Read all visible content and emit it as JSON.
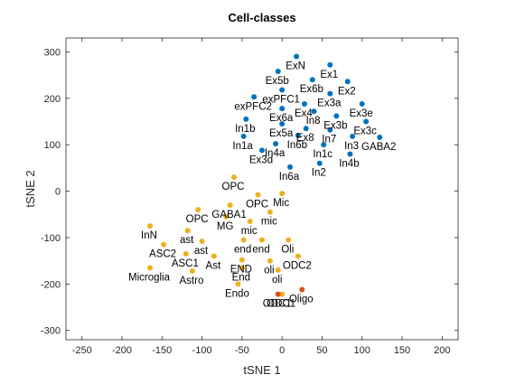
{
  "chart_data": {
    "type": "scatter",
    "title": "Cell-classes",
    "xlabel": "tSNE 1",
    "ylabel": "tSNE 2",
    "xlim": [
      -270,
      220
    ],
    "ylim": [
      -320,
      330
    ],
    "xticks": [
      -250,
      -200,
      -150,
      -100,
      -50,
      0,
      50,
      100,
      150,
      200
    ],
    "yticks": [
      -300,
      -200,
      -100,
      0,
      100,
      200,
      300
    ],
    "grid": false,
    "colors": {
      "blue": "#0072bd",
      "yellow": "#edb120",
      "orange": "#d95319"
    },
    "series": [
      {
        "color": "#0072bd",
        "points": [
          {
            "x": 18,
            "y": 290,
            "label": "ExN"
          },
          {
            "x": 60,
            "y": 272,
            "label": "Ex1"
          },
          {
            "x": -5,
            "y": 258,
            "label": "Ex5b"
          },
          {
            "x": 38,
            "y": 240,
            "label": "Ex6b"
          },
          {
            "x": 82,
            "y": 236,
            "label": "Ex2"
          },
          {
            "x": 0,
            "y": 218,
            "label": "exPFC1"
          },
          {
            "x": -35,
            "y": 203,
            "label": "exPFC2"
          },
          {
            "x": 60,
            "y": 210,
            "label": "Ex3a"
          },
          {
            "x": 100,
            "y": 188,
            "label": "Ex3e"
          },
          {
            "x": 28,
            "y": 188,
            "label": "Ex4"
          },
          {
            "x": 0,
            "y": 178,
            "label": "Ex6a"
          },
          {
            "x": -45,
            "y": 155,
            "label": "In1b"
          },
          {
            "x": 40,
            "y": 172,
            "label": "In8"
          },
          {
            "x": 68,
            "y": 162,
            "label": "Ex3b"
          },
          {
            "x": 105,
            "y": 150,
            "label": "Ex3c"
          },
          {
            "x": 0,
            "y": 145,
            "label": "Ex5a"
          },
          {
            "x": 30,
            "y": 135,
            "label": "Ex8"
          },
          {
            "x": -48,
            "y": 118,
            "label": "In1a"
          },
          {
            "x": 60,
            "y": 132,
            "label": "In7"
          },
          {
            "x": 88,
            "y": 118,
            "label": "In3"
          },
          {
            "x": 122,
            "y": 116,
            "label": "GABA2"
          },
          {
            "x": 20,
            "y": 120,
            "label": "In6b"
          },
          {
            "x": 52,
            "y": 100,
            "label": "In1c"
          },
          {
            "x": -8,
            "y": 102,
            "label": "In4a"
          },
          {
            "x": -25,
            "y": 88,
            "label": "Ex3d"
          },
          {
            "x": 85,
            "y": 80,
            "label": "In4b"
          },
          {
            "x": 47,
            "y": 60,
            "label": "In2"
          },
          {
            "x": 10,
            "y": 52,
            "label": "In6a"
          }
        ]
      },
      {
        "color": "#edb120",
        "points": [
          {
            "x": -60,
            "y": 30,
            "label": "OPC"
          },
          {
            "x": 0,
            "y": -5,
            "label": "Mic"
          },
          {
            "x": -30,
            "y": -8,
            "label": "OPC"
          },
          {
            "x": -65,
            "y": -30,
            "label": "GABA1"
          },
          {
            "x": -15,
            "y": -45,
            "label": "mic"
          },
          {
            "x": -105,
            "y": -40,
            "label": "OPC"
          },
          {
            "x": -70,
            "y": -55,
            "label": "MG"
          },
          {
            "x": -40,
            "y": -65,
            "label": "mic"
          },
          {
            "x": -165,
            "y": -75,
            "label": "InN"
          },
          {
            "x": -118,
            "y": -85,
            "label": "ast"
          },
          {
            "x": -148,
            "y": -115,
            "label": "ASC2"
          },
          {
            "x": -100,
            "y": -108,
            "label": "ast"
          },
          {
            "x": -48,
            "y": -105,
            "label": "end"
          },
          {
            "x": -25,
            "y": -105,
            "label": "end"
          },
          {
            "x": 8,
            "y": -105,
            "label": "Oli"
          },
          {
            "x": -120,
            "y": -135,
            "label": "ASC1"
          },
          {
            "x": -85,
            "y": -140,
            "label": "Ast"
          },
          {
            "x": -50,
            "y": -148,
            "label": "END"
          },
          {
            "x": -15,
            "y": -150,
            "label": "oli"
          },
          {
            "x": 20,
            "y": -140,
            "label": "ODC2"
          },
          {
            "x": -165,
            "y": -165,
            "label": "Microglia"
          },
          {
            "x": -112,
            "y": -172,
            "label": "Astro"
          },
          {
            "x": -50,
            "y": -165,
            "label": "End"
          },
          {
            "x": -5,
            "y": -170,
            "label": "oli"
          },
          {
            "x": -55,
            "y": -200,
            "label": "Endo"
          },
          {
            "x": 0,
            "y": -222,
            "label": "ODC1"
          }
        ]
      },
      {
        "color": "#d95319",
        "points": [
          {
            "x": -5,
            "y": -222,
            "label": "ODC1"
          },
          {
            "x": 25,
            "y": -212,
            "label": "Oligo"
          }
        ]
      }
    ]
  }
}
